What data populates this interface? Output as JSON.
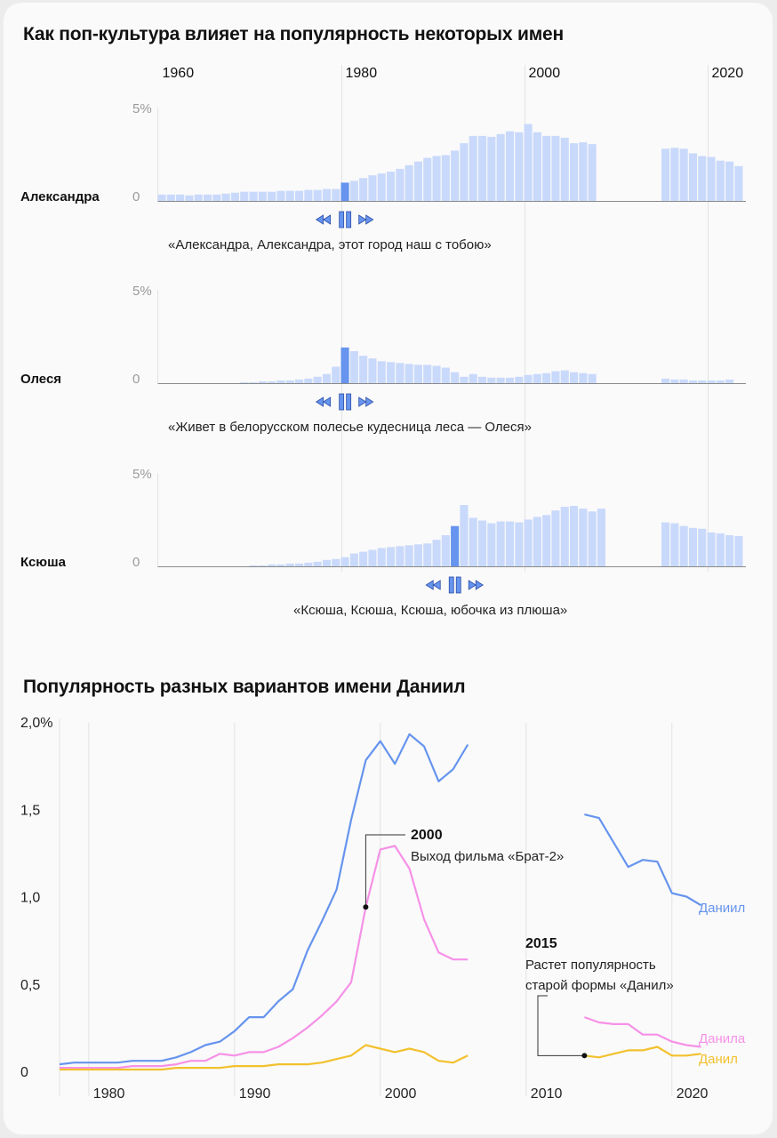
{
  "title_bars": "Как поп-культура влияет на популярность некоторых имен",
  "title_lines": "Популярность разных вариантов имени Даниил",
  "chart_data": [
    {
      "type": "bar",
      "top_axis_ticks": [
        "1960",
        "1980",
        "2000",
        "2020"
      ],
      "y_ticks": [
        "0",
        "5%"
      ],
      "highlight_color": "#6694ee",
      "bar_color": "#c9d9fb",
      "panels": [
        {
          "name": "Александра",
          "quote": "«Александра, Александра, этот город наш с тобою»",
          "highlight_year": 1980,
          "start_year": 1960,
          "values": [
            0.35,
            0.35,
            0.35,
            0.3,
            0.35,
            0.35,
            0.35,
            0.4,
            0.45,
            0.5,
            0.5,
            0.5,
            0.5,
            0.55,
            0.55,
            0.55,
            0.6,
            0.6,
            0.65,
            0.65,
            1.0,
            1.1,
            1.25,
            1.4,
            1.5,
            1.6,
            1.75,
            1.95,
            2.15,
            2.35,
            2.45,
            2.5,
            2.75,
            3.15,
            3.55,
            3.55,
            3.5,
            3.65,
            3.8,
            3.75,
            4.2,
            3.75,
            3.55,
            3.55,
            3.45,
            3.15,
            3.2,
            3.1,
            null,
            null,
            null,
            null,
            null,
            null,
            null,
            2.85,
            2.9,
            2.85,
            2.6,
            2.45,
            2.4,
            2.2,
            2.15,
            1.9
          ]
        },
        {
          "name": "Олеся",
          "quote": "«Живет в белорусском полесье кудесница леса — Олеся»",
          "highlight_year": 1980,
          "start_year": 1960,
          "values": [
            0,
            0,
            0,
            0,
            0,
            0,
            0,
            0,
            0,
            0.05,
            0.05,
            0.1,
            0.1,
            0.15,
            0.15,
            0.2,
            0.25,
            0.35,
            0.5,
            0.9,
            1.95,
            1.75,
            1.5,
            1.35,
            1.2,
            1.15,
            1.1,
            1.05,
            1.0,
            1.0,
            0.95,
            0.85,
            0.6,
            0.35,
            0.5,
            0.35,
            0.3,
            0.3,
            0.3,
            0.35,
            0.45,
            0.5,
            0.55,
            0.65,
            0.7,
            0.6,
            0.55,
            0.5,
            null,
            null,
            null,
            null,
            null,
            null,
            null,
            0.25,
            0.2,
            0.2,
            0.15,
            0.15,
            0.15,
            0.15,
            0.2,
            0
          ]
        },
        {
          "name": "Ксюша",
          "quote": "«Ксюша, Ксюша, Ксюша, юбочка из плюша»",
          "highlight_year": 1992,
          "start_year": 1960,
          "values": [
            0,
            0,
            0,
            0,
            0,
            0,
            0,
            0,
            0,
            0,
            0.05,
            0.05,
            0.1,
            0.1,
            0.15,
            0.15,
            0.2,
            0.25,
            0.35,
            0.4,
            0.5,
            0.7,
            0.8,
            0.9,
            1.0,
            1.05,
            1.1,
            1.15,
            1.2,
            1.25,
            1.45,
            1.7,
            2.2,
            3.35,
            2.65,
            2.5,
            2.35,
            2.45,
            2.45,
            2.4,
            2.55,
            2.7,
            2.8,
            3.05,
            3.25,
            3.3,
            3.15,
            3.0,
            3.15,
            null,
            null,
            null,
            null,
            null,
            null,
            2.4,
            2.35,
            2.2,
            2.1,
            2.05,
            1.85,
            1.8,
            1.7,
            1.65
          ]
        }
      ]
    },
    {
      "type": "line",
      "x_ticks": [
        "1980",
        "1990",
        "2000",
        "2010",
        "2020"
      ],
      "y_ticks": [
        "0",
        "0,5",
        "1,0",
        "1,5",
        "2,0%"
      ],
      "ylim": [
        0,
        2.0
      ],
      "xlim": [
        1978,
        2022
      ],
      "series": [
        {
          "name": "Даниил",
          "color": "#6694ee",
          "segments": [
            [
              [
                1978,
                0.04
              ],
              [
                1979,
                0.05
              ],
              [
                1980,
                0.05
              ],
              [
                1981,
                0.05
              ],
              [
                1982,
                0.05
              ],
              [
                1983,
                0.06
              ],
              [
                1984,
                0.06
              ],
              [
                1985,
                0.06
              ],
              [
                1986,
                0.08
              ],
              [
                1987,
                0.11
              ],
              [
                1988,
                0.15
              ],
              [
                1989,
                0.17
              ],
              [
                1990,
                0.23
              ],
              [
                1991,
                0.31
              ],
              [
                1992,
                0.31
              ],
              [
                1993,
                0.4
              ],
              [
                1994,
                0.47
              ],
              [
                1995,
                0.69
              ],
              [
                1996,
                0.86
              ],
              [
                1997,
                1.04
              ],
              [
                1998,
                1.44
              ],
              [
                1999,
                1.78
              ],
              [
                2000,
                1.89
              ],
              [
                2001,
                1.76
              ],
              [
                2002,
                1.93
              ],
              [
                2003,
                1.86
              ],
              [
                2004,
                1.66
              ],
              [
                2005,
                1.73
              ],
              [
                2006,
                1.87
              ]
            ],
            [
              [
                2014,
                1.47
              ],
              [
                2015,
                1.45
              ],
              [
                2016,
                1.31
              ],
              [
                2017,
                1.17
              ],
              [
                2018,
                1.21
              ],
              [
                2019,
                1.2
              ],
              [
                2020,
                1.02
              ],
              [
                2021,
                1.0
              ],
              [
                2022,
                0.95
              ]
            ]
          ]
        },
        {
          "name": "Данила",
          "color": "#f691e7",
          "segments": [
            [
              [
                1978,
                0.02
              ],
              [
                1979,
                0.02
              ],
              [
                1980,
                0.02
              ],
              [
                1981,
                0.02
              ],
              [
                1982,
                0.02
              ],
              [
                1983,
                0.03
              ],
              [
                1984,
                0.03
              ],
              [
                1985,
                0.03
              ],
              [
                1986,
                0.04
              ],
              [
                1987,
                0.06
              ],
              [
                1988,
                0.06
              ],
              [
                1989,
                0.1
              ],
              [
                1990,
                0.09
              ],
              [
                1991,
                0.11
              ],
              [
                1992,
                0.11
              ],
              [
                1993,
                0.14
              ],
              [
                1994,
                0.19
              ],
              [
                1995,
                0.25
              ],
              [
                1996,
                0.32
              ],
              [
                1997,
                0.4
              ],
              [
                1998,
                0.51
              ],
              [
                1999,
                0.94
              ],
              [
                2000,
                1.27
              ],
              [
                2001,
                1.29
              ],
              [
                2002,
                1.16
              ],
              [
                2003,
                0.87
              ],
              [
                2004,
                0.68
              ],
              [
                2005,
                0.64
              ],
              [
                2006,
                0.64
              ]
            ],
            [
              [
                2014,
                0.31
              ],
              [
                2015,
                0.28
              ],
              [
                2016,
                0.27
              ],
              [
                2017,
                0.27
              ],
              [
                2018,
                0.21
              ],
              [
                2019,
                0.21
              ],
              [
                2020,
                0.17
              ],
              [
                2021,
                0.15
              ],
              [
                2022,
                0.14
              ]
            ]
          ]
        },
        {
          "name": "Данил",
          "color": "#f2c12e",
          "segments": [
            [
              [
                1978,
                0.01
              ],
              [
                1979,
                0.01
              ],
              [
                1980,
                0.01
              ],
              [
                1981,
                0.01
              ],
              [
                1982,
                0.01
              ],
              [
                1983,
                0.01
              ],
              [
                1984,
                0.01
              ],
              [
                1985,
                0.01
              ],
              [
                1986,
                0.02
              ],
              [
                1987,
                0.02
              ],
              [
                1988,
                0.02
              ],
              [
                1989,
                0.02
              ],
              [
                1990,
                0.03
              ],
              [
                1991,
                0.03
              ],
              [
                1992,
                0.03
              ],
              [
                1993,
                0.04
              ],
              [
                1994,
                0.04
              ],
              [
                1995,
                0.04
              ],
              [
                1996,
                0.05
              ],
              [
                1997,
                0.07
              ],
              [
                1998,
                0.09
              ],
              [
                1999,
                0.15
              ],
              [
                2000,
                0.13
              ],
              [
                2001,
                0.11
              ],
              [
                2002,
                0.13
              ],
              [
                2003,
                0.11
              ],
              [
                2004,
                0.06
              ],
              [
                2005,
                0.05
              ],
              [
                2006,
                0.09
              ]
            ],
            [
              [
                2014,
                0.09
              ],
              [
                2015,
                0.08
              ],
              [
                2016,
                0.1
              ],
              [
                2017,
                0.12
              ],
              [
                2018,
                0.12
              ],
              [
                2019,
                0.14
              ],
              [
                2020,
                0.09
              ],
              [
                2021,
                0.09
              ],
              [
                2022,
                0.1
              ]
            ]
          ]
        }
      ],
      "annotations": [
        {
          "year": "2000",
          "text": "Выход фильма «Брат-2»"
        },
        {
          "year": "2015",
          "line1": "Растет популярность",
          "line2": "старой формы «Данил»"
        }
      ]
    }
  ]
}
